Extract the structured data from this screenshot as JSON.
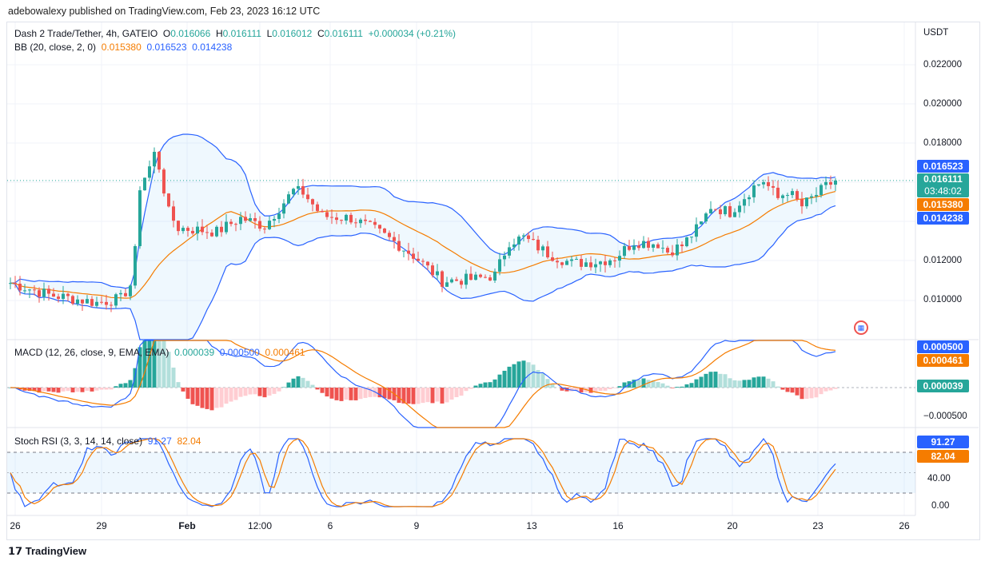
{
  "publisher_line": "adebowalexy published on TradingView.com, Feb 23, 2023 16:12 UTC",
  "symbol": {
    "title": "Dash 2 Trade/Tether, 4h, GATEIO",
    "o_label": "O",
    "o": "0.016066",
    "h_label": "H",
    "h": "0.016111",
    "l_label": "L",
    "l": "0.016012",
    "c_label": "C",
    "c": "0.016111",
    "change": "+0.000034 (+0.21%)"
  },
  "bb": {
    "label": "BB (20, close, 2, 0)",
    "basis": "0.015380",
    "upper": "0.016523",
    "lower": "0.014238"
  },
  "macd": {
    "label": "MACD (12, 26, close, 9, EMA, EMA)",
    "hist": "0.000039",
    "macd": "0.000500",
    "signal": "0.000461"
  },
  "stoch": {
    "label": "Stoch RSI (3, 3, 14, 14, close)",
    "k": "91.27",
    "d": "82.04"
  },
  "price_axis": {
    "currency": "USDT",
    "ticks": [
      "0.022000",
      "0.020000",
      "0.018000",
      "0.012000",
      "0.010000"
    ]
  },
  "price_tags": {
    "upper": "0.016523",
    "last": "0.016111",
    "countdown": "03:48:02",
    "basis": "0.015380",
    "lower": "0.014238"
  },
  "macd_axis": {
    "tags": [
      "0.000500",
      "0.000461",
      "0.000039"
    ],
    "ticks": [
      "−0.000500"
    ]
  },
  "stoch_axis": {
    "tags": [
      "91.27",
      "82.04"
    ],
    "ticks": [
      "40.00",
      "0.00"
    ]
  },
  "date_axis": [
    "26",
    "29",
    "Feb",
    "12:00",
    "6",
    "9",
    "13",
    "16",
    "20",
    "23",
    "26"
  ],
  "footer": {
    "brand": "TradingView"
  },
  "colors": {
    "up": "#26a69a",
    "down": "#ef5350",
    "bb_band": "#2962ff",
    "bb_basis": "#f57c00"
  },
  "chart_data": {
    "type": "candlestick",
    "timeframe": "4h",
    "price_keypoints": [
      [
        0,
        0.0109
      ],
      [
        8,
        0.0103
      ],
      [
        18,
        0.0099
      ],
      [
        23,
        0.0101
      ],
      [
        25,
        0.0108
      ],
      [
        26,
        0.0125
      ],
      [
        27,
        0.0158
      ],
      [
        29,
        0.0168
      ],
      [
        29.5,
        0.0178
      ],
      [
        31,
        0.0168
      ],
      [
        33,
        0.0145
      ],
      [
        35,
        0.0137
      ],
      [
        43,
        0.0135
      ],
      [
        48,
        0.0142
      ],
      [
        53,
        0.0138
      ],
      [
        57,
        0.015
      ],
      [
        59,
        0.0156
      ],
      [
        61,
        0.0155
      ],
      [
        65,
        0.0143
      ],
      [
        71,
        0.0142
      ],
      [
        76,
        0.0136
      ],
      [
        80,
        0.013
      ],
      [
        84,
        0.0123
      ],
      [
        90,
        0.011
      ],
      [
        97,
        0.0111
      ],
      [
        101,
        0.0113
      ],
      [
        104,
        0.013
      ],
      [
        107,
        0.0132
      ],
      [
        112,
        0.0124
      ],
      [
        117,
        0.0119
      ],
      [
        123,
        0.012
      ],
      [
        126,
        0.0122
      ],
      [
        130,
        0.013
      ],
      [
        135,
        0.0129
      ],
      [
        137,
        0.0125
      ],
      [
        140,
        0.0128
      ],
      [
        144,
        0.0139
      ],
      [
        146,
        0.0148
      ],
      [
        150,
        0.0145
      ],
      [
        155,
        0.0158
      ],
      [
        157,
        0.0161
      ],
      [
        160,
        0.0152
      ],
      [
        162,
        0.0156
      ],
      [
        165,
        0.0148
      ],
      [
        167,
        0.0152
      ],
      [
        170,
        0.0158
      ],
      [
        172,
        0.0161
      ]
    ]
  }
}
